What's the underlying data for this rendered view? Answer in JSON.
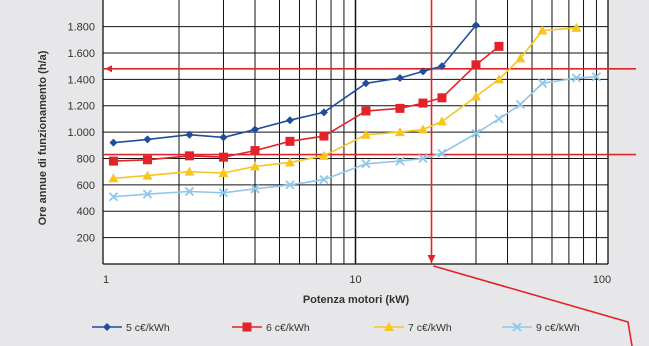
{
  "chart_data": {
    "type": "line",
    "xlabel": "Potenza motori (kW)",
    "ylabel": "Ore annue di funzionamento (h/a)",
    "xscale": "log",
    "xlim": [
      1,
      100
    ],
    "ylim": [
      0,
      1800
    ],
    "xticks": [
      "1",
      "10",
      "100"
    ],
    "yticks": [
      "200",
      "400",
      "600",
      "800",
      "1.000",
      "1.200",
      "1.400",
      "1.600",
      "1.800"
    ],
    "grid": true,
    "legend_position": "bottom",
    "series": [
      {
        "name": "5 c€/kWh",
        "color": "#1f4e9b",
        "marker": "diamond",
        "x": [
          1.1,
          1.5,
          2.2,
          3,
          4,
          5.5,
          7.5,
          11,
          15,
          18.5,
          22,
          30
        ],
        "y": [
          920,
          945,
          980,
          960,
          1020,
          1090,
          1150,
          1370,
          1410,
          1460,
          1500,
          1810
        ]
      },
      {
        "name": "6 c€/kWh",
        "color": "#e2232a",
        "marker": "square",
        "x": [
          1.1,
          1.5,
          2.2,
          3,
          4,
          5.5,
          7.5,
          11,
          15,
          18.5,
          22,
          30,
          37
        ],
        "y": [
          780,
          790,
          820,
          810,
          860,
          930,
          970,
          1160,
          1180,
          1220,
          1260,
          1510,
          1650
        ]
      },
      {
        "name": "7 c€/kWh",
        "color": "#f7c51e",
        "marker": "triangle",
        "x": [
          1.1,
          1.5,
          2.2,
          3,
          4,
          5.5,
          7.5,
          11,
          15,
          18.5,
          22,
          30,
          37,
          45,
          55,
          75
        ],
        "y": [
          650,
          670,
          700,
          690,
          740,
          770,
          820,
          980,
          1000,
          1020,
          1080,
          1270,
          1400,
          1560,
          1770,
          1790
        ]
      },
      {
        "name": "9 c€/kWh",
        "color": "#8fc6ea",
        "marker": "x",
        "x": [
          1.1,
          1.5,
          2.2,
          3,
          4,
          5.5,
          7.5,
          11,
          15,
          18.5,
          22,
          30,
          37,
          45,
          55,
          75,
          90
        ],
        "y": [
          510,
          530,
          550,
          540,
          570,
          600,
          640,
          760,
          780,
          800,
          840,
          990,
          1100,
          1210,
          1370,
          1410,
          1420
        ]
      }
    ],
    "annotations": {
      "hlines": [
        1480,
        830
      ],
      "vline_x": 20,
      "color": "#e2232a"
    }
  }
}
